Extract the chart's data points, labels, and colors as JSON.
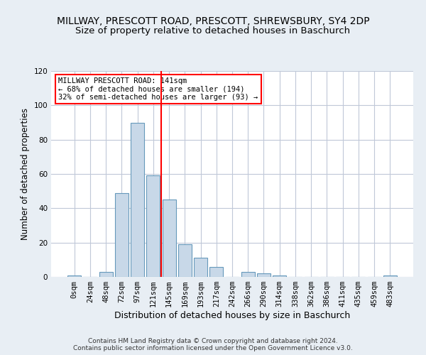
{
  "title": "MILLWAY, PRESCOTT ROAD, PRESCOTT, SHREWSBURY, SY4 2DP",
  "subtitle": "Size of property relative to detached houses in Baschurch",
  "xlabel": "Distribution of detached houses by size in Baschurch",
  "ylabel": "Number of detached properties",
  "categories": [
    "0sqm",
    "24sqm",
    "48sqm",
    "72sqm",
    "97sqm",
    "121sqm",
    "145sqm",
    "169sqm",
    "193sqm",
    "217sqm",
    "242sqm",
    "266sqm",
    "290sqm",
    "314sqm",
    "338sqm",
    "362sqm",
    "386sqm",
    "411sqm",
    "435sqm",
    "459sqm",
    "483sqm"
  ],
  "values": [
    1,
    0,
    3,
    49,
    90,
    59,
    45,
    19,
    11,
    6,
    0,
    3,
    2,
    1,
    0,
    0,
    0,
    0,
    0,
    0,
    1
  ],
  "bar_color": "#c8d8e8",
  "bar_edge_color": "#6699bb",
  "vline_x_index": 5.5,
  "vline_color": "red",
  "annotation_text": "MILLWAY PRESCOTT ROAD: 141sqm\n← 68% of detached houses are smaller (194)\n32% of semi-detached houses are larger (93) →",
  "annotation_box_color": "white",
  "annotation_box_edge_color": "red",
  "ylim": [
    0,
    120
  ],
  "yticks": [
    0,
    20,
    40,
    60,
    80,
    100,
    120
  ],
  "footer": "Contains HM Land Registry data © Crown copyright and database right 2024.\nContains public sector information licensed under the Open Government Licence v3.0.",
  "background_color": "#e8eef4",
  "plot_background_color": "#ffffff",
  "grid_color": "#c0c8d8",
  "title_fontsize": 10,
  "subtitle_fontsize": 9.5,
  "xlabel_fontsize": 9,
  "ylabel_fontsize": 8.5,
  "tick_fontsize": 7.5,
  "footer_fontsize": 6.5
}
